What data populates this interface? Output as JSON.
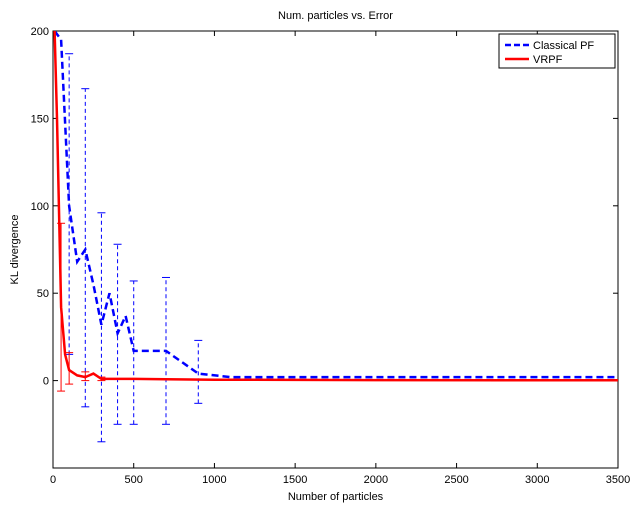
{
  "chart_data": {
    "type": "line",
    "title": "Num. particles vs. Error",
    "xlabel": "Number of particles",
    "ylabel": "KL divergence",
    "xlim": [
      0,
      3500
    ],
    "ylim": [
      -50,
      200
    ],
    "xticks": [
      0,
      500,
      1000,
      1500,
      2000,
      2500,
      3000,
      3500
    ],
    "yticks": [
      0,
      50,
      100,
      150,
      200
    ],
    "grid": false,
    "legend_position": "top-right",
    "series": [
      {
        "name": "Classical PF",
        "color": "#0000ff",
        "style": "dashed",
        "x": [
          10,
          50,
          100,
          150,
          200,
          250,
          300,
          350,
          400,
          450,
          500,
          700,
          900,
          1100,
          2000,
          3500
        ],
        "y": [
          200,
          195,
          100,
          68,
          75,
          55,
          32,
          50,
          27,
          37,
          17,
          17,
          4,
          2,
          2,
          2
        ],
        "error_bars": [
          {
            "x": 100,
            "low": 15,
            "high": 187
          },
          {
            "x": 200,
            "low": -15,
            "high": 167
          },
          {
            "x": 300,
            "low": -35,
            "high": 96
          },
          {
            "x": 400,
            "low": -25,
            "high": 78
          },
          {
            "x": 500,
            "low": -25,
            "high": 57
          },
          {
            "x": 700,
            "low": -25,
            "high": 59
          },
          {
            "x": 900,
            "low": -13,
            "high": 23
          }
        ]
      },
      {
        "name": "VRPF",
        "color": "#ff0000",
        "style": "solid",
        "x": [
          10,
          25,
          50,
          75,
          100,
          150,
          200,
          250,
          300,
          400,
          500,
          700,
          1000,
          2000,
          3500
        ],
        "y": [
          200,
          150,
          42,
          15,
          6,
          3,
          2,
          4,
          1,
          1,
          1,
          0.8,
          0.5,
          0.3,
          0.2
        ],
        "error_bars": [
          {
            "x": 50,
            "low": -6,
            "high": 90
          },
          {
            "x": 100,
            "low": -2,
            "high": 16
          },
          {
            "x": 200,
            "low": 0,
            "high": 5
          },
          {
            "x": 300,
            "low": 0,
            "high": 2
          }
        ]
      }
    ]
  }
}
